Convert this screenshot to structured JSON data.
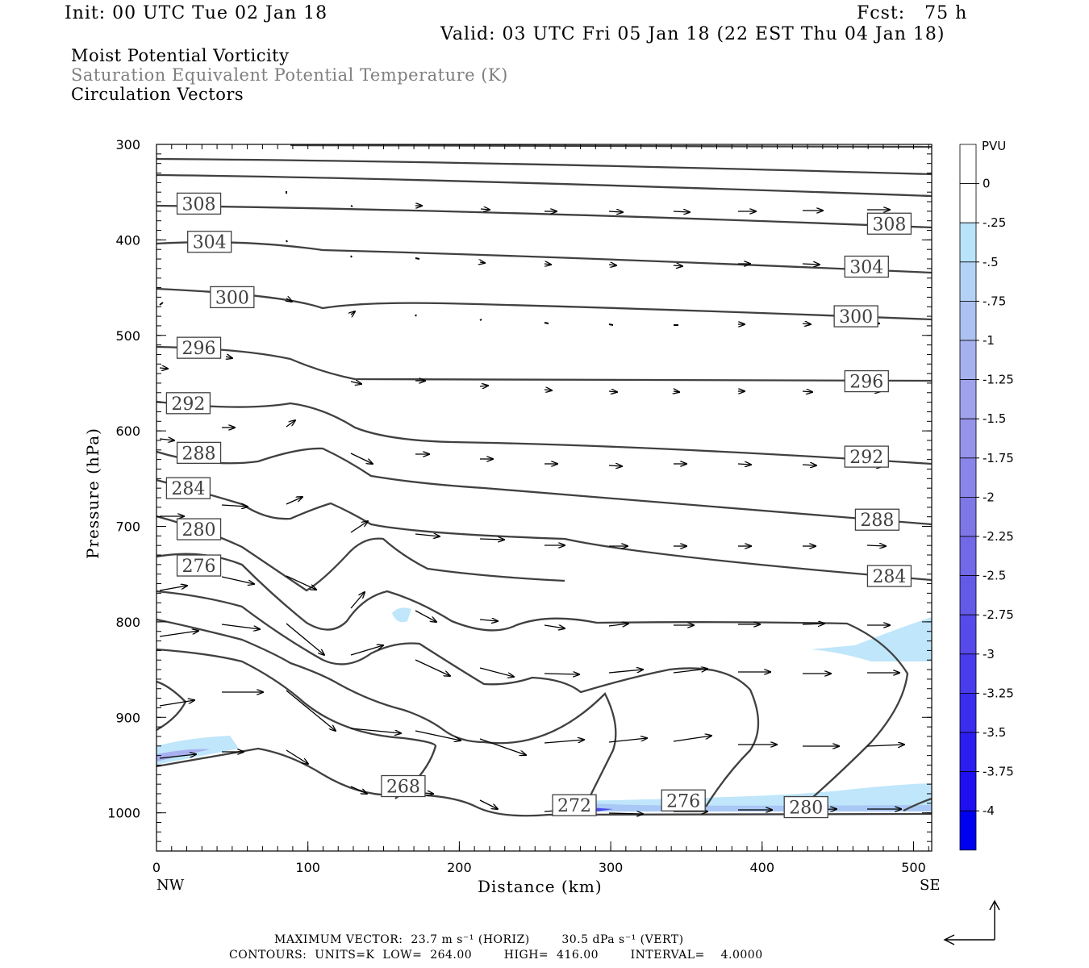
{
  "header": {
    "init": "Init: 00 UTC Tue 02 Jan 18",
    "fcst": "Fcst:   75 h",
    "valid": "Valid: 03 UTC Fri 05 Jan 18 (22 EST Thu 04 Jan 18)",
    "field1": "Moist Potential Vorticity",
    "field2": "Saturation Equivalent Potential Temperature (K)",
    "field3": "Circulation Vectors"
  },
  "footer": {
    "max_vector": "MAXIMUM VECTOR:  23.7 m s⁻¹ (HORIZ)        30.5 dPa s⁻¹ (VERT)",
    "contours": "CONTOURS:  UNITS=K  LOW=  264.00        HIGH=  416.00        INTERVAL=    4.0000"
  },
  "colors": {
    "contour": "#404040",
    "pv_light": "#bfe6fa",
    "pv_mid": "#8c96f0",
    "pv_dark": "#0000f0"
  },
  "chart_data": {
    "type": "contour",
    "xlabel": "Distance (km)",
    "ylabel": "Pressure (hPa)",
    "xlim": [
      0,
      512
    ],
    "ylim": [
      1040,
      300
    ],
    "x_ticks": [
      "0",
      "100",
      "200",
      "300",
      "400",
      "500"
    ],
    "y_ticks": [
      "300",
      "400",
      "500",
      "600",
      "700",
      "800",
      "900",
      "1000"
    ],
    "endpoint_left": "NW",
    "endpoint_right": "SE",
    "colorbar": {
      "title": "PVU",
      "labels": [
        "0",
        "-.25",
        "-.5",
        "-.75",
        "-1",
        "-1.25",
        "-1.5",
        "-1.75",
        "-2",
        "-2.25",
        "-2.5",
        "-2.75",
        "-3",
        "-3.25",
        "-3.5",
        "-3.75",
        "-4"
      ]
    },
    "contour_labels": [
      {
        "text": "308",
        "x": 28,
        "p": 362
      },
      {
        "text": "308",
        "x": 484,
        "p": 383
      },
      {
        "text": "304",
        "x": 35,
        "p": 402
      },
      {
        "text": "304",
        "x": 469,
        "p": 428
      },
      {
        "text": "300",
        "x": 50,
        "p": 460
      },
      {
        "text": "300",
        "x": 462,
        "p": 480
      },
      {
        "text": "296",
        "x": 28,
        "p": 513
      },
      {
        "text": "296",
        "x": 469,
        "p": 548
      },
      {
        "text": "292",
        "x": 21,
        "p": 571
      },
      {
        "text": "292",
        "x": 469,
        "p": 627
      },
      {
        "text": "288",
        "x": 28,
        "p": 623
      },
      {
        "text": "288",
        "x": 476,
        "p": 693
      },
      {
        "text": "284",
        "x": 21,
        "p": 660
      },
      {
        "text": "284",
        "x": 484,
        "p": 752
      },
      {
        "text": "280",
        "x": 28,
        "p": 703
      },
      {
        "text": "276",
        "x": 28,
        "p": 741
      },
      {
        "text": "268",
        "x": 163,
        "p": 972
      },
      {
        "text": "272",
        "x": 276,
        "p": 992
      },
      {
        "text": "276",
        "x": 348,
        "p": 987
      },
      {
        "text": "280",
        "x": 429,
        "p": 994
      }
    ]
  }
}
